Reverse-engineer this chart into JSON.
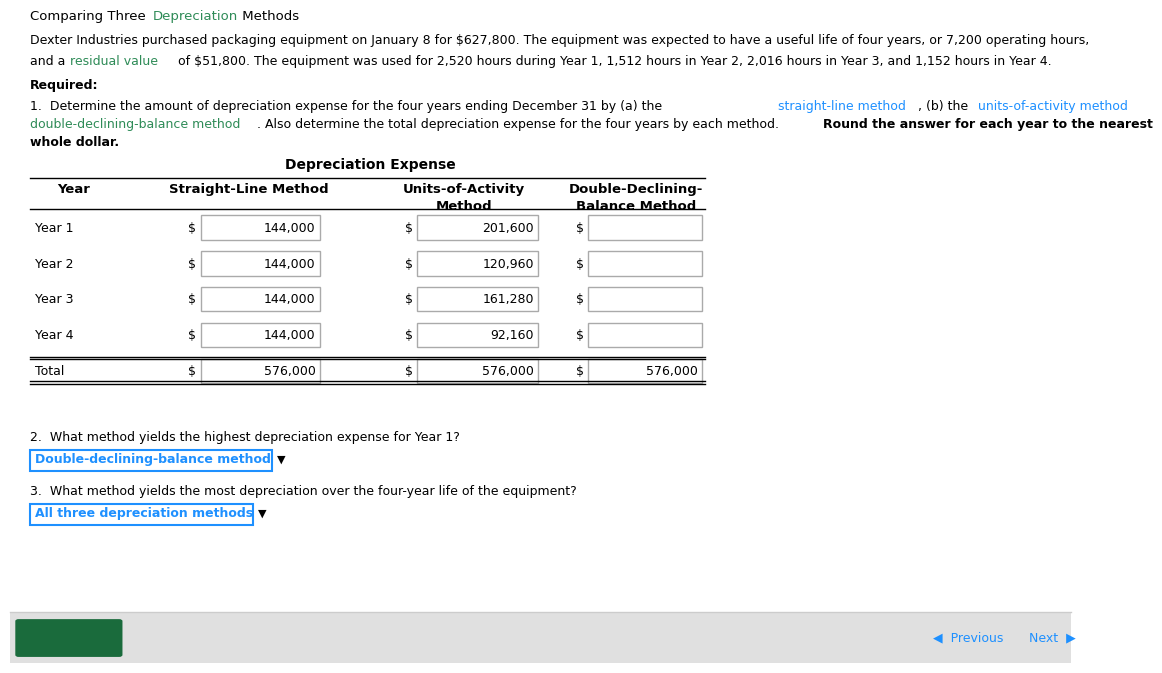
{
  "title_color": "#2e8b57",
  "para1": "Dexter Industries purchased packaging equipment on January 8 for $627,800. The equipment was expected to have a useful life of four years, or 7,200 operating hours,",
  "para2_pre": "and a ",
  "para2_colored": "residual value",
  "para2_post": " of $51,800. The equipment was used for 2,520 hours during Year 1, 1,512 hours in Year 2, 2,016 hours in Year 3, and 1,152 hours in Year 4.",
  "para2_color": "#2e8b57",
  "q1_slm_color": "#1e90ff",
  "q1_uam_color": "#1e90ff",
  "q1_ddb_color": "#2e8b57",
  "years": [
    "Year 1",
    "Year 2",
    "Year 3",
    "Year 4",
    "Total"
  ],
  "slm_values": [
    "144,000",
    "144,000",
    "144,000",
    "144,000",
    "576,000"
  ],
  "uam_values": [
    "201,600",
    "120,960",
    "161,280",
    "92,160",
    "576,000"
  ],
  "ddb_values": [
    "",
    "",
    "",
    "",
    "576,000"
  ],
  "question2_answer": "Double-declining-balance method",
  "question3_answer": "All three depreciation methods",
  "answer_color": "#1e90ff",
  "bg_color": "#ffffff",
  "box_border_color": "#aaaaaa",
  "answer_box_border": "#1e90ff"
}
